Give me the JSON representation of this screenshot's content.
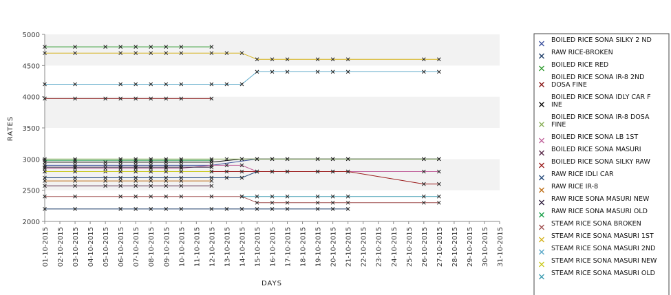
{
  "chart_data": {
    "type": "line",
    "title": "",
    "xlabel": "DAYS",
    "ylabel": "RATES",
    "ylim": [
      2000,
      5000
    ],
    "yticks": [
      "2000",
      "2500",
      "3000",
      "3500",
      "4000",
      "4500",
      "5000"
    ],
    "grid": "alternating-bands",
    "legend_position": "right",
    "categories": [
      "01-10-2015",
      "02-10-2015",
      "03-10-2015",
      "04-10-2015",
      "05-10-2015",
      "06-10-2015",
      "07-10-2015",
      "08-10-2015",
      "09-10-2015",
      "10-10-2015",
      "11-10-2015",
      "12-10-2015",
      "13-10-2015",
      "14-10-2015",
      "15-10-2015",
      "16-10-2015",
      "17-10-2015",
      "18-10-2015",
      "19-10-2015",
      "20-10-2015",
      "21-10-2015",
      "22-10-2015",
      "23-10-2015",
      "24-10-2015",
      "25-10-2015",
      "26-10-2015",
      "27-10-2015",
      "28-10-2015",
      "29-10-2015",
      "30-10-2015",
      "31-10-2015"
    ],
    "series": [
      {
        "name": "BOILED RICE SONA SILKY 2 ND",
        "color": "#3a4f9c",
        "points": [
          [
            "01-10-2015",
            2900
          ],
          [
            "03-10-2015",
            2900
          ],
          [
            "05-10-2015",
            2900
          ],
          [
            "06-10-2015",
            2900
          ],
          [
            "07-10-2015",
            2900
          ],
          [
            "08-10-2015",
            2900
          ],
          [
            "09-10-2015",
            2900
          ],
          [
            "10-10-2015",
            2900
          ],
          [
            "12-10-2015",
            2900
          ],
          [
            "15-10-2015",
            3000
          ],
          [
            "16-10-2015",
            3000
          ],
          [
            "17-10-2015",
            3000
          ],
          [
            "19-10-2015",
            3000
          ],
          [
            "20-10-2015",
            3000
          ],
          [
            "21-10-2015",
            3000
          ],
          [
            "26-10-2015",
            3000
          ],
          [
            "27-10-2015",
            3000
          ]
        ]
      },
      {
        "name": " RAW RICE-BROKEN",
        "color": "#1f3f6a",
        "points": [
          [
            "01-10-2015",
            2200
          ],
          [
            "03-10-2015",
            2200
          ],
          [
            "06-10-2015",
            2200
          ],
          [
            "07-10-2015",
            2200
          ],
          [
            "08-10-2015",
            2200
          ],
          [
            "09-10-2015",
            2200
          ],
          [
            "10-10-2015",
            2200
          ],
          [
            "12-10-2015",
            2200
          ],
          [
            "13-10-2015",
            2200
          ],
          [
            "14-10-2015",
            2200
          ],
          [
            "15-10-2015",
            2200
          ],
          [
            "16-10-2015",
            2200
          ],
          [
            "17-10-2015",
            2200
          ],
          [
            "19-10-2015",
            2200
          ],
          [
            "20-10-2015",
            2200
          ],
          [
            "21-10-2015",
            2200
          ]
        ]
      },
      {
        "name": "BOILED RICE RED",
        "color": "#2e9a2e",
        "points": [
          [
            "01-10-2015",
            4800
          ],
          [
            "03-10-2015",
            4800
          ],
          [
            "05-10-2015",
            4800
          ],
          [
            "06-10-2015",
            4800
          ],
          [
            "07-10-2015",
            4800
          ],
          [
            "08-10-2015",
            4800
          ],
          [
            "09-10-2015",
            4800
          ],
          [
            "10-10-2015",
            4800
          ],
          [
            "12-10-2015",
            4800
          ]
        ]
      },
      {
        "name": "BOILED RICE SONA  IR-8 2ND DOSA FINE",
        "color": "#8a1a1a",
        "points": [
          [
            "01-10-2015",
            3970
          ],
          [
            "03-10-2015",
            3970
          ],
          [
            "05-10-2015",
            3970
          ],
          [
            "06-10-2015",
            3970
          ],
          [
            "07-10-2015",
            3970
          ],
          [
            "08-10-2015",
            3970
          ],
          [
            "09-10-2015",
            3970
          ],
          [
            "10-10-2015",
            3970
          ],
          [
            "12-10-2015",
            3970
          ]
        ]
      },
      {
        "name": "BOILED RICE SONA IDLY CAR FINE",
        "color": "#111111",
        "points": [
          [
            "01-10-2015",
            2950
          ],
          [
            "03-10-2015",
            2950
          ],
          [
            "05-10-2015",
            2950
          ],
          [
            "06-10-2015",
            2950
          ],
          [
            "07-10-2015",
            2950
          ],
          [
            "08-10-2015",
            2950
          ],
          [
            "09-10-2015",
            2950
          ],
          [
            "10-10-2015",
            2950
          ],
          [
            "12-10-2015",
            2950
          ],
          [
            "14-10-2015",
            3000
          ],
          [
            "15-10-2015",
            3000
          ],
          [
            "16-10-2015",
            3000
          ],
          [
            "17-10-2015",
            3000
          ],
          [
            "19-10-2015",
            3000
          ],
          [
            "20-10-2015",
            3000
          ],
          [
            "21-10-2015",
            3000
          ],
          [
            "26-10-2015",
            3000
          ],
          [
            "27-10-2015",
            3000
          ]
        ]
      },
      {
        "name": "BOILED RICE SONA IR-8 DOSA FINE",
        "color": "#8ab05a",
        "points": [
          [
            "01-10-2015",
            3000
          ],
          [
            "03-10-2015",
            3000
          ],
          [
            "06-10-2015",
            3000
          ],
          [
            "07-10-2015",
            3000
          ],
          [
            "08-10-2015",
            3000
          ],
          [
            "09-10-2015",
            3000
          ],
          [
            "10-10-2015",
            3000
          ],
          [
            "12-10-2015",
            3000
          ],
          [
            "13-10-2015",
            3000
          ],
          [
            "14-10-2015",
            3000
          ],
          [
            "15-10-2015",
            3000
          ],
          [
            "16-10-2015",
            3000
          ],
          [
            "17-10-2015",
            3000
          ],
          [
            "19-10-2015",
            3000
          ],
          [
            "20-10-2015",
            3000
          ],
          [
            "21-10-2015",
            3000
          ],
          [
            "26-10-2015",
            3000
          ],
          [
            "27-10-2015",
            3000
          ]
        ]
      },
      {
        "name": "BOILED RICE SONA LB 1ST",
        "color": "#c0609a",
        "points": [
          [
            "01-10-2015",
            2850
          ],
          [
            "03-10-2015",
            2850
          ],
          [
            "05-10-2015",
            2850
          ],
          [
            "06-10-2015",
            2850
          ],
          [
            "07-10-2015",
            2850
          ],
          [
            "08-10-2015",
            2850
          ],
          [
            "09-10-2015",
            2850
          ],
          [
            "10-10-2015",
            2850
          ],
          [
            "12-10-2015",
            2900
          ],
          [
            "13-10-2015",
            2900
          ],
          [
            "14-10-2015",
            2900
          ],
          [
            "15-10-2015",
            2800
          ],
          [
            "16-10-2015",
            2800
          ],
          [
            "17-10-2015",
            2800
          ],
          [
            "19-10-2015",
            2800
          ],
          [
            "20-10-2015",
            2800
          ],
          [
            "21-10-2015",
            2800
          ],
          [
            "26-10-2015",
            2800
          ],
          [
            "27-10-2015",
            2800
          ]
        ]
      },
      {
        "name": "BOILED RICE SONA MASURI",
        "color": "#5a2a4a",
        "points": [
          [
            "01-10-2015",
            2570
          ],
          [
            "03-10-2015",
            2570
          ],
          [
            "05-10-2015",
            2570
          ],
          [
            "06-10-2015",
            2570
          ],
          [
            "07-10-2015",
            2570
          ],
          [
            "08-10-2015",
            2570
          ],
          [
            "09-10-2015",
            2570
          ],
          [
            "10-10-2015",
            2570
          ],
          [
            "12-10-2015",
            2570
          ]
        ]
      },
      {
        "name": "BOILED RICE SONA SILKY RAW",
        "color": "#9a1a1a",
        "points": [
          [
            "01-10-2015",
            2800
          ],
          [
            "03-10-2015",
            2800
          ],
          [
            "05-10-2015",
            2800
          ],
          [
            "06-10-2015",
            2800
          ],
          [
            "07-10-2015",
            2800
          ],
          [
            "08-10-2015",
            2800
          ],
          [
            "09-10-2015",
            2800
          ],
          [
            "10-10-2015",
            2800
          ],
          [
            "12-10-2015",
            2800
          ],
          [
            "13-10-2015",
            2800
          ],
          [
            "14-10-2015",
            2800
          ],
          [
            "15-10-2015",
            2800
          ],
          [
            "16-10-2015",
            2800
          ],
          [
            "17-10-2015",
            2800
          ],
          [
            "19-10-2015",
            2800
          ],
          [
            "20-10-2015",
            2800
          ],
          [
            "21-10-2015",
            2800
          ],
          [
            "26-10-2015",
            2600
          ],
          [
            "27-10-2015",
            2600
          ]
        ]
      },
      {
        "name": "RAW RICE IDLI CAR",
        "color": "#244a7a",
        "points": [
          [
            "01-10-2015",
            2700
          ],
          [
            "03-10-2015",
            2700
          ],
          [
            "05-10-2015",
            2700
          ],
          [
            "06-10-2015",
            2700
          ],
          [
            "07-10-2015",
            2700
          ],
          [
            "08-10-2015",
            2700
          ],
          [
            "09-10-2015",
            2700
          ],
          [
            "10-10-2015",
            2700
          ],
          [
            "12-10-2015",
            2700
          ],
          [
            "13-10-2015",
            2700
          ],
          [
            "14-10-2015",
            2700
          ],
          [
            "15-10-2015",
            2800
          ]
        ]
      },
      {
        "name": "RAW RICE IR-8",
        "color": "#c0701a",
        "points": [
          [
            "01-10-2015",
            2650
          ],
          [
            "03-10-2015",
            2650
          ],
          [
            "05-10-2015",
            2650
          ],
          [
            "06-10-2015",
            2650
          ],
          [
            "07-10-2015",
            2650
          ],
          [
            "08-10-2015",
            2650
          ],
          [
            "09-10-2015",
            2650
          ],
          [
            "10-10-2015",
            2650
          ],
          [
            "12-10-2015",
            2650
          ]
        ]
      },
      {
        "name": "RAW RICE SONA MASURI NEW",
        "color": "#2a1a3a",
        "points": [
          [
            "01-10-2015",
            2870
          ],
          [
            "03-10-2015",
            2870
          ],
          [
            "06-10-2015",
            2870
          ],
          [
            "07-10-2015",
            2870
          ],
          [
            "08-10-2015",
            2870
          ],
          [
            "09-10-2015",
            2870
          ],
          [
            "10-10-2015",
            2870
          ],
          [
            "12-10-2015",
            2870
          ]
        ]
      },
      {
        "name": "RAW RICE SONA MASURI OLD",
        "color": "#1aa04a",
        "points": [
          [
            "01-10-2015",
            2980
          ],
          [
            "03-10-2015",
            2980
          ],
          [
            "06-10-2015",
            2980
          ],
          [
            "07-10-2015",
            2980
          ],
          [
            "08-10-2015",
            2980
          ],
          [
            "09-10-2015",
            2980
          ],
          [
            "10-10-2015",
            2980
          ],
          [
            "12-10-2015",
            2980
          ]
        ]
      },
      {
        "name": "STEAM RICE SONA BROKEN",
        "color": "#a05050",
        "points": [
          [
            "01-10-2015",
            2400
          ],
          [
            "03-10-2015",
            2400
          ],
          [
            "06-10-2015",
            2400
          ],
          [
            "07-10-2015",
            2400
          ],
          [
            "08-10-2015",
            2400
          ],
          [
            "09-10-2015",
            2400
          ],
          [
            "10-10-2015",
            2400
          ],
          [
            "12-10-2015",
            2400
          ],
          [
            "14-10-2015",
            2400
          ],
          [
            "15-10-2015",
            2300
          ],
          [
            "16-10-2015",
            2300
          ],
          [
            "17-10-2015",
            2300
          ],
          [
            "19-10-2015",
            2300
          ],
          [
            "20-10-2015",
            2300
          ],
          [
            "21-10-2015",
            2300
          ],
          [
            "26-10-2015",
            2300
          ],
          [
            "27-10-2015",
            2300
          ]
        ]
      },
      {
        "name": "STEAM RICE SONA MASURI 1ST",
        "color": "#d4b21a",
        "points": [
          [
            "01-10-2015",
            4700
          ],
          [
            "03-10-2015",
            4700
          ],
          [
            "06-10-2015",
            4700
          ],
          [
            "07-10-2015",
            4700
          ],
          [
            "08-10-2015",
            4700
          ],
          [
            "09-10-2015",
            4700
          ],
          [
            "10-10-2015",
            4700
          ],
          [
            "12-10-2015",
            4700
          ],
          [
            "13-10-2015",
            4700
          ],
          [
            "14-10-2015",
            4700
          ],
          [
            "15-10-2015",
            4600
          ],
          [
            "16-10-2015",
            4600
          ],
          [
            "17-10-2015",
            4600
          ],
          [
            "19-10-2015",
            4600
          ],
          [
            "20-10-2015",
            4600
          ],
          [
            "21-10-2015",
            4600
          ],
          [
            "26-10-2015",
            4600
          ],
          [
            "27-10-2015",
            4600
          ]
        ]
      },
      {
        "name": "STEAM RICE SONA MASURI 2ND",
        "color": "#5aa8c8",
        "points": [
          [
            "01-10-2015",
            4200
          ],
          [
            "03-10-2015",
            4200
          ],
          [
            "06-10-2015",
            4200
          ],
          [
            "07-10-2015",
            4200
          ],
          [
            "08-10-2015",
            4200
          ],
          [
            "09-10-2015",
            4200
          ],
          [
            "10-10-2015",
            4200
          ],
          [
            "12-10-2015",
            4200
          ],
          [
            "13-10-2015",
            4200
          ],
          [
            "14-10-2015",
            4200
          ],
          [
            "15-10-2015",
            4400
          ],
          [
            "16-10-2015",
            4400
          ],
          [
            "17-10-2015",
            4400
          ],
          [
            "19-10-2015",
            4400
          ],
          [
            "20-10-2015",
            4400
          ],
          [
            "21-10-2015",
            4400
          ],
          [
            "26-10-2015",
            4400
          ],
          [
            "27-10-2015",
            4400
          ]
        ]
      },
      {
        "name": "STEAM RICE SONA MASURI NEW",
        "color": "#c8c81a",
        "points": [
          [
            "01-10-2015",
            2800
          ],
          [
            "03-10-2015",
            2800
          ],
          [
            "06-10-2015",
            2800
          ],
          [
            "07-10-2015",
            2800
          ],
          [
            "08-10-2015",
            2800
          ],
          [
            "09-10-2015",
            2800
          ],
          [
            "10-10-2015",
            2800
          ],
          [
            "12-10-2015",
            2800
          ]
        ]
      },
      {
        "name": "STEAM RICE SONA MASURI OLD",
        "color": "#3a9ab0",
        "points": [
          [
            "14-10-2015",
            2400
          ],
          [
            "15-10-2015",
            2400
          ],
          [
            "16-10-2015",
            2400
          ],
          [
            "17-10-2015",
            2400
          ],
          [
            "19-10-2015",
            2400
          ],
          [
            "20-10-2015",
            2400
          ],
          [
            "21-10-2015",
            2400
          ],
          [
            "26-10-2015",
            2400
          ],
          [
            "27-10-2015",
            2400
          ]
        ]
      }
    ]
  }
}
